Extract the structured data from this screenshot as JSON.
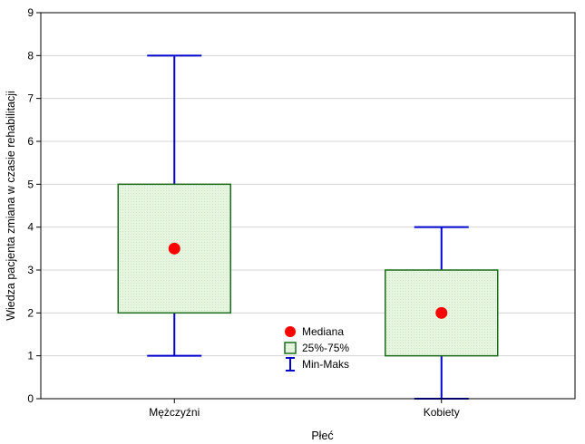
{
  "chart_data": {
    "type": "box",
    "categories": [
      "Mężczyźni",
      "Kobiety"
    ],
    "boxes": [
      {
        "category": "Mężczyźni",
        "min": 1,
        "q1": 2,
        "median": 3.5,
        "q3": 5,
        "max": 8
      },
      {
        "category": "Kobiety",
        "min": 0,
        "q1": 1,
        "median": 2,
        "q3": 3,
        "max": 4
      }
    ],
    "title": "",
    "xlabel": "Płeć",
    "ylabel": "Wiedza pacjenta zmiana w czasie rehabilitacji",
    "ylim": [
      0,
      9
    ],
    "yticks": [
      0,
      1,
      2,
      3,
      4,
      5,
      6,
      7,
      8,
      9
    ],
    "grid": "horizontal",
    "legend": {
      "placement": "bottom-center",
      "entries": [
        {
          "label": "Mediana",
          "symbol": "dot"
        },
        {
          "label": "25%-75%",
          "symbol": "box"
        },
        {
          "label": "Min-Maks",
          "symbol": "whisker"
        }
      ]
    },
    "colors": {
      "median": "#ff0000",
      "box_fill": "#e2f3dc",
      "box_stroke": "#1a6b1a",
      "whisker": "#0000cc",
      "grid": "#d4d4d4"
    }
  }
}
